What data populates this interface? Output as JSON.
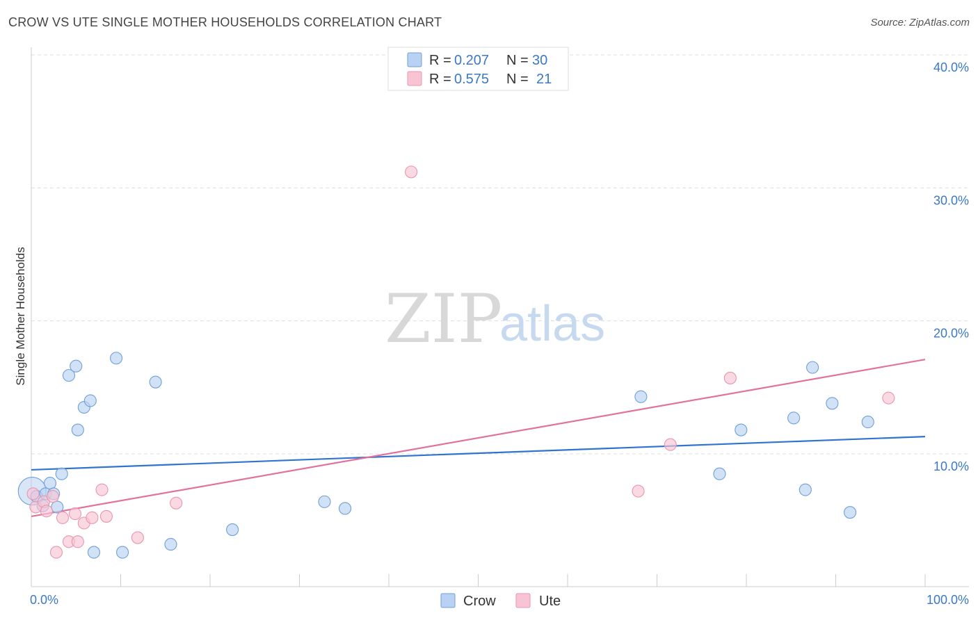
{
  "header": {
    "title": "CROW VS UTE SINGLE MOTHER HOUSEHOLDS CORRELATION CHART",
    "source": "Source: ZipAtlas.com"
  },
  "watermark": {
    "zip": "ZIP",
    "atlas": "atlas"
  },
  "legend_top": [
    {
      "r_label": "R = ",
      "r_value": "0.207",
      "n_label": "N = ",
      "n_value": "30"
    },
    {
      "r_label": "R = ",
      "r_value": "0.575",
      "n_label": "N = ",
      "n_value": "21"
    }
  ],
  "colors": {
    "crow_fill": "#b9d2f3",
    "crow_stroke": "#6f9fd8",
    "crow_line": "#2f74cf",
    "ute_fill": "#f8c4d4",
    "ute_stroke": "#e995b0",
    "ute_line": "#e2729b",
    "value_text": "#3b78c9"
  },
  "chart_data": {
    "type": "scatter",
    "title": "CROW VS UTE SINGLE MOTHER HOUSEHOLDS CORRELATION CHART",
    "xlabel": "",
    "ylabel": "Single Mother Households",
    "xlim": [
      0,
      100
    ],
    "ylim": [
      0,
      42
    ],
    "x_tick_labels": [
      {
        "value": 0,
        "label": "0.0%"
      },
      {
        "value": 100,
        "label": "100.0%"
      }
    ],
    "y_ticks": [
      {
        "value": 10,
        "label": "10.0%"
      },
      {
        "value": 20,
        "label": "20.0%"
      },
      {
        "value": 30,
        "label": "30.0%"
      },
      {
        "value": 40,
        "label": "40.0%"
      }
    ],
    "series": [
      {
        "name": "Crow",
        "r": 0.207,
        "n": 30,
        "trend": {
          "x": [
            0,
            100
          ],
          "y": [
            8.8,
            11.3
          ]
        },
        "points": [
          {
            "x": 0.1,
            "y": 7.2,
            "large": true
          },
          {
            "x": 0.6,
            "y": 6.8
          },
          {
            "x": 1.3,
            "y": 6.1
          },
          {
            "x": 1.6,
            "y": 7.0
          },
          {
            "x": 2.1,
            "y": 7.8
          },
          {
            "x": 2.5,
            "y": 7.0
          },
          {
            "x": 2.9,
            "y": 6.0
          },
          {
            "x": 3.4,
            "y": 8.5
          },
          {
            "x": 4.2,
            "y": 15.9
          },
          {
            "x": 5.0,
            "y": 16.6
          },
          {
            "x": 5.2,
            "y": 11.8
          },
          {
            "x": 5.9,
            "y": 13.5
          },
          {
            "x": 6.6,
            "y": 14.0
          },
          {
            "x": 7.0,
            "y": 2.6
          },
          {
            "x": 9.5,
            "y": 17.2
          },
          {
            "x": 10.2,
            "y": 2.6
          },
          {
            "x": 13.9,
            "y": 15.4
          },
          {
            "x": 15.6,
            "y": 3.2
          },
          {
            "x": 22.5,
            "y": 4.3
          },
          {
            "x": 32.8,
            "y": 6.4
          },
          {
            "x": 35.1,
            "y": 5.9
          },
          {
            "x": 68.2,
            "y": 14.3
          },
          {
            "x": 77.0,
            "y": 8.5
          },
          {
            "x": 79.4,
            "y": 11.8
          },
          {
            "x": 85.3,
            "y": 12.7
          },
          {
            "x": 86.6,
            "y": 7.3
          },
          {
            "x": 87.4,
            "y": 16.5
          },
          {
            "x": 89.6,
            "y": 13.8
          },
          {
            "x": 91.6,
            "y": 5.6
          },
          {
            "x": 93.6,
            "y": 12.4
          }
        ]
      },
      {
        "name": "Ute",
        "r": 0.575,
        "n": 21,
        "trend": {
          "x": [
            0,
            100
          ],
          "y": [
            5.3,
            17.1
          ]
        },
        "points": [
          {
            "x": 0.2,
            "y": 7.0
          },
          {
            "x": 0.5,
            "y": 6.0
          },
          {
            "x": 1.4,
            "y": 6.4
          },
          {
            "x": 1.7,
            "y": 5.7
          },
          {
            "x": 2.4,
            "y": 6.8
          },
          {
            "x": 2.8,
            "y": 2.6
          },
          {
            "x": 3.5,
            "y": 5.2
          },
          {
            "x": 4.2,
            "y": 3.4
          },
          {
            "x": 4.9,
            "y": 5.5
          },
          {
            "x": 5.2,
            "y": 3.4
          },
          {
            "x": 5.9,
            "y": 4.8
          },
          {
            "x": 6.8,
            "y": 5.2
          },
          {
            "x": 7.9,
            "y": 7.3
          },
          {
            "x": 8.4,
            "y": 5.3
          },
          {
            "x": 11.9,
            "y": 3.7
          },
          {
            "x": 16.2,
            "y": 6.3
          },
          {
            "x": 42.5,
            "y": 31.2
          },
          {
            "x": 67.9,
            "y": 7.2
          },
          {
            "x": 71.5,
            "y": 10.7
          },
          {
            "x": 78.2,
            "y": 15.7
          },
          {
            "x": 95.9,
            "y": 14.2
          }
        ]
      }
    ],
    "legend": [
      "Crow",
      "Ute"
    ]
  }
}
